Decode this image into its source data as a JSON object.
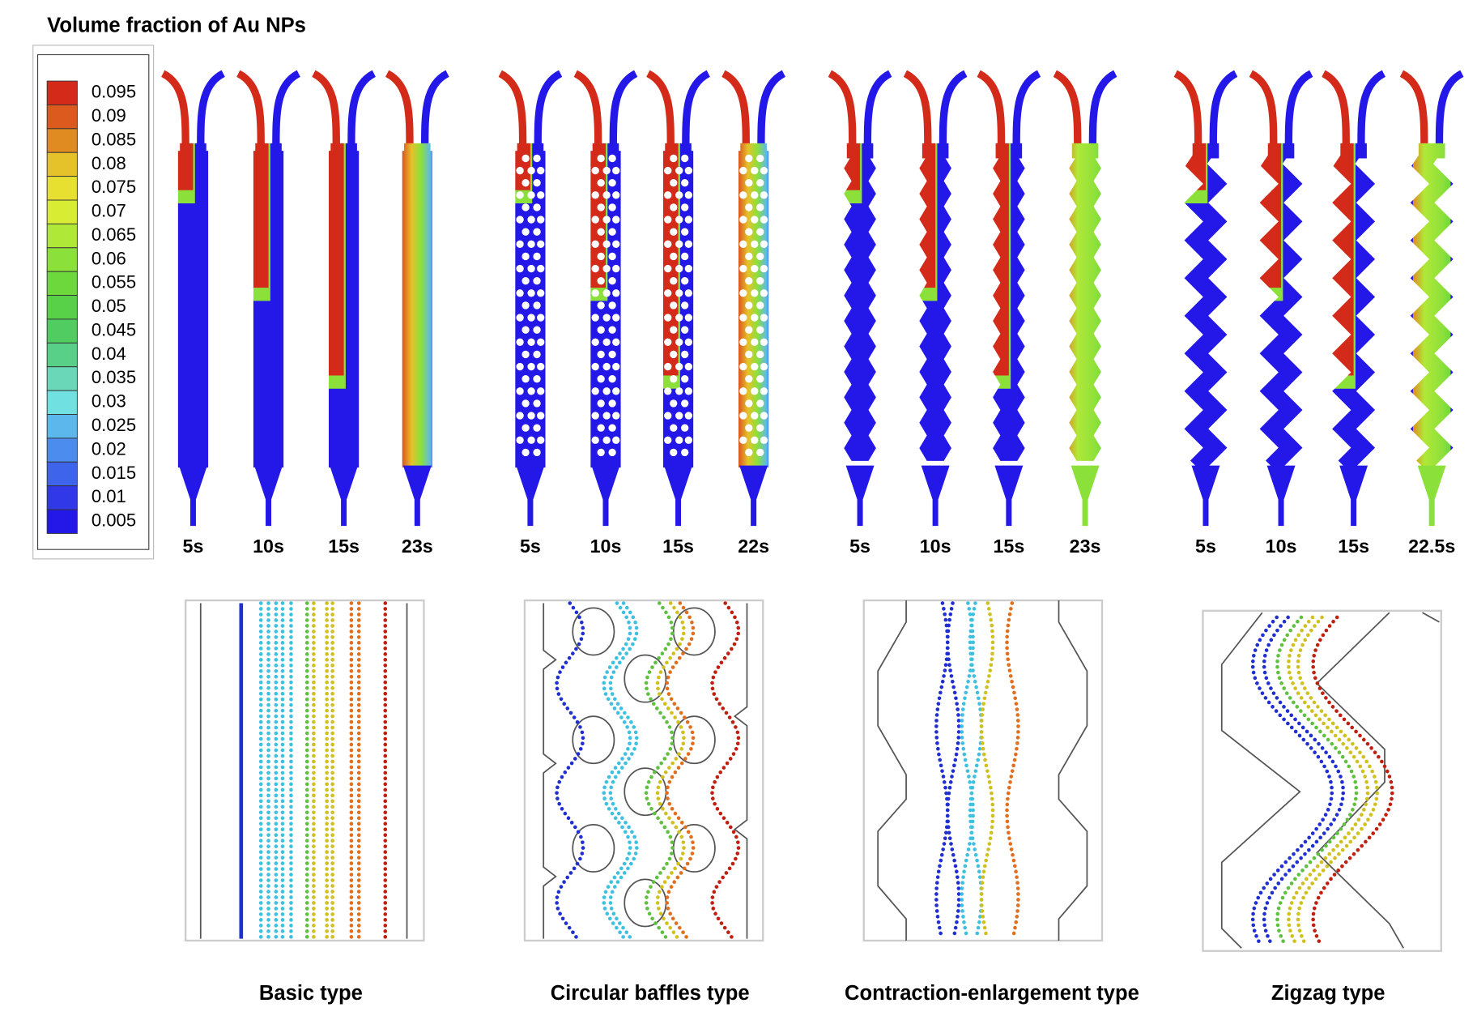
{
  "title": "Volume fraction of Au NPs",
  "colorbar": {
    "labels": [
      0.095,
      0.09,
      0.085,
      0.08,
      0.075,
      0.07,
      0.065,
      0.06,
      0.055,
      0.05,
      0.045,
      0.04,
      0.035,
      0.03,
      0.025,
      0.02,
      0.015,
      0.01,
      0.005
    ],
    "colors": [
      "#d42a1a",
      "#dc5a1e",
      "#e08a22",
      "#e6c22a",
      "#e8e030",
      "#d8ec34",
      "#b0e838",
      "#8ce03a",
      "#6cd83c",
      "#58d048",
      "#50cc60",
      "#58d088",
      "#6ad8b8",
      "#70e0e0",
      "#5cb8ec",
      "#4c8cee",
      "#3e64ec",
      "#3038e8",
      "#2418e8"
    ]
  },
  "groups": [
    {
      "name": "Basic type",
      "times": [
        "5s",
        "10s",
        "15s",
        "23s"
      ]
    },
    {
      "name": "Circular baffles type",
      "times": [
        "5s",
        "10s",
        "15s",
        "22s"
      ]
    },
    {
      "name": "Contraction-enlargement type",
      "times": [
        "5s",
        "10s",
        "15s",
        "23s"
      ]
    },
    {
      "name": "Zigzag type",
      "times": [
        "5s",
        "10s",
        "15s",
        "22.5s"
      ]
    }
  ]
}
